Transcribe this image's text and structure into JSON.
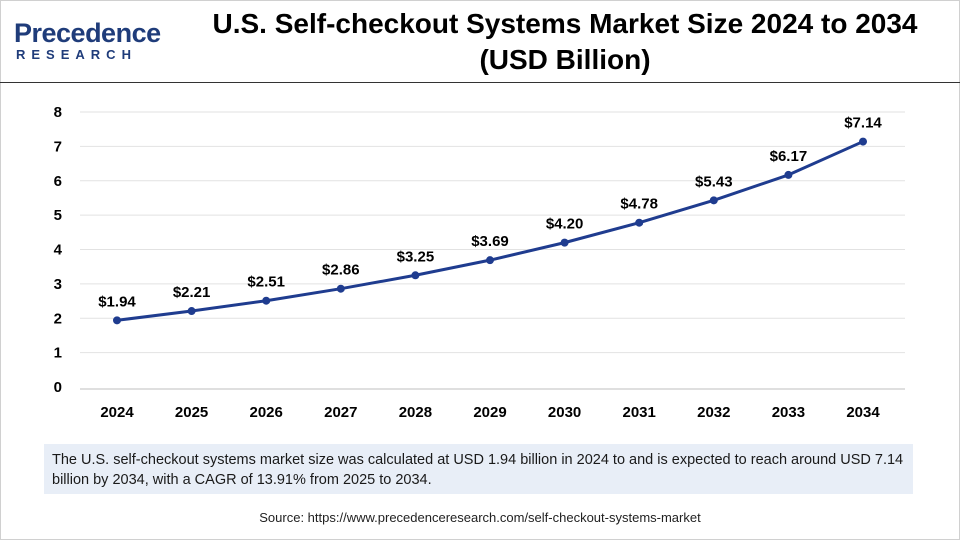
{
  "logo": {
    "name": "Precedence",
    "sub": "RESEARCH"
  },
  "chart_data": {
    "type": "line",
    "title": "U.S. Self-checkout Systems Market Size 2024 to 2034 (USD Billion)",
    "title_line1": "U.S. Self-checkout Systems Market Size 2024 to 2034",
    "title_line2": "(USD Billion)",
    "categories": [
      "2024",
      "2025",
      "2026",
      "2027",
      "2028",
      "2029",
      "2030",
      "2031",
      "2032",
      "2033",
      "2034"
    ],
    "values": [
      1.94,
      2.21,
      2.51,
      2.86,
      3.25,
      3.69,
      4.2,
      4.78,
      5.43,
      6.17,
      7.14
    ],
    "labels": [
      "$1.94",
      "$2.21",
      "$2.51",
      "$2.86",
      "$3.25",
      "$3.69",
      "$4.20",
      "$4.78",
      "$5.43",
      "$6.17",
      "$7.14"
    ],
    "y_ticks": [
      0,
      1,
      2,
      3,
      4,
      5,
      6,
      7,
      8
    ],
    "ylim": [
      0,
      8
    ],
    "xlabel": "",
    "ylabel": "",
    "grid": true,
    "line_color": "#1f3c8f"
  },
  "note": "The U.S. self-checkout systems market size was calculated at USD 1.94 billion in 2024 to and is expected to reach around USD 7.14 billion by 2034, with a CAGR of 13.91% from 2025 to 2034.",
  "source": "Source: https://www.precedenceresearch.com/self-checkout-systems-market"
}
